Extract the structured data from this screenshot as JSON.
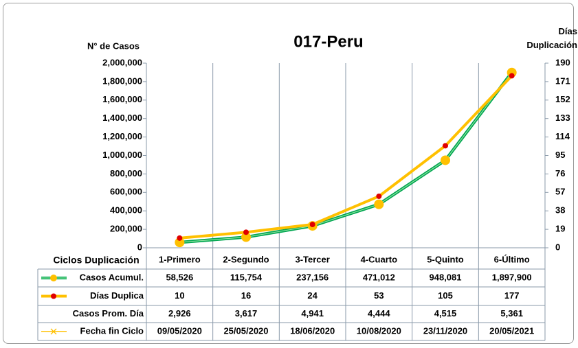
{
  "chart_data": {
    "type": "line",
    "title": "017-Peru",
    "y_label": "N° de Casos",
    "y2_label": "Días Duplicación",
    "categories_label": "Ciclos Duplicación",
    "categories": [
      "1-Primero",
      "2-Segundo",
      "3-Tercer",
      "4-Cuarto",
      "5-Quinto",
      "6-Último"
    ],
    "series": [
      {
        "name": "Casos Acumul.",
        "color": "#00a651",
        "marker_color": "#ffc000",
        "values": [
          58526,
          115754,
          237156,
          471012,
          948081,
          1897900
        ],
        "value_labels": [
          "58,526",
          "115,754",
          "237,156",
          "471,012",
          "948,081",
          "1,897,900"
        ]
      },
      {
        "name": "Días Duplica",
        "axis": "y2",
        "color": "#ffc000",
        "marker_color": "#e00000",
        "values": [
          10,
          16,
          24,
          53,
          105,
          177
        ]
      },
      {
        "name": "Casos Prom. Día",
        "values": [
          2926,
          3617,
          4941,
          4444,
          4515,
          5361
        ],
        "value_labels": [
          "2,926",
          "3,617",
          "4,941",
          "4,444",
          "4,515",
          "5,361"
        ]
      }
    ],
    "dates_row": {
      "name": "Fecha fin Ciclo",
      "color": "#ffc000",
      "labels": [
        "09/05/2020",
        "25/05/2020",
        "18/06/2020",
        "10/08/2020",
        "23/11/2020",
        "20/05/2021"
      ]
    },
    "ylim": [
      0,
      2000000
    ],
    "yticks": [
      0,
      {
        "value": 200000,
        "label": "200,000"
      },
      {
        "value": 400000,
        "label": "400,000"
      },
      {
        "value": 600000,
        "label": "600,000"
      },
      {
        "value": 800000,
        "label": "800,000"
      },
      {
        "value": 1000000,
        "label": "1,000,000"
      },
      {
        "value": 1200000,
        "label": "1,200,000"
      },
      {
        "value": 1400000,
        "label": "1,400,000"
      },
      {
        "value": 1600000,
        "label": "1,600,000"
      },
      {
        "value": 1800000,
        "label": "1,800,000"
      },
      {
        "value": 2000000,
        "label": "2,000,000"
      }
    ],
    "y2lim": [
      0,
      190
    ],
    "y2ticks": [
      0,
      19,
      38,
      57,
      76,
      95,
      114,
      133,
      152,
      171,
      190
    ],
    "grid": true
  }
}
